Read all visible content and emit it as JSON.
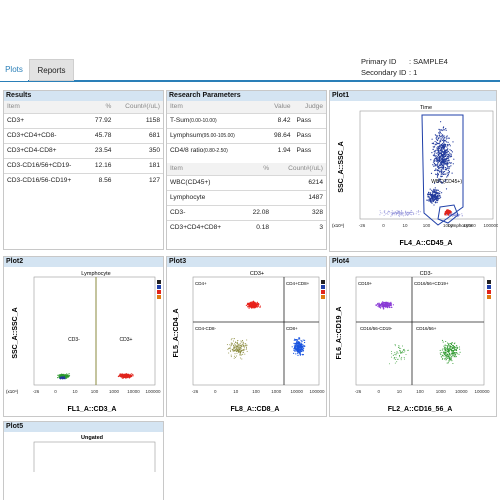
{
  "tabs": [
    {
      "label": "Plots"
    },
    {
      "label": "Reports"
    }
  ],
  "header": {
    "primary_id_label": "Primary ID",
    "primary_id_value": ": SAMPLE4",
    "secondary_id_label": "Secondary ID",
    "secondary_id_value": ": 1"
  },
  "results": {
    "title": "Results",
    "col_item": "Item",
    "col_pct": "%",
    "col_count": "Count#(/uL)",
    "rows": [
      {
        "item": "CD3+",
        "pct": "77.92",
        "count": "1158"
      },
      {
        "item": "CD3+CD4+CD8-",
        "pct": "45.78",
        "count": "681"
      },
      {
        "item": "CD3+CD4-CD8+",
        "pct": "23.54",
        "count": "350"
      },
      {
        "item": "CD3-CD16/56+CD19-",
        "pct": "12.16",
        "count": "181"
      },
      {
        "item": "CD3-CD16/56-CD19+",
        "pct": "8.56",
        "count": "127"
      }
    ]
  },
  "research": {
    "title": "Research Parameters",
    "col_item": "Item",
    "col_value": "Value",
    "col_judge": "Judge",
    "rows": [
      {
        "item": "T-Sum",
        "range": "(0.00-10.00)",
        "value": "8.42",
        "judge": "Pass"
      },
      {
        "item": "Lymphsum",
        "range": "(95.00-105.00)",
        "value": "98.64",
        "judge": "Pass"
      },
      {
        "item": "CD4/8 ratio",
        "range": "(0.80-2.50)",
        "value": "1.94",
        "judge": "Pass"
      }
    ],
    "col2_item": "Item",
    "col2_pct": "%",
    "col2_count": "Count#(/uL)",
    "rows2": [
      {
        "item": "WBC(CD45+)",
        "pct": "",
        "count": "6214"
      },
      {
        "item": "Lymphocyte",
        "pct": "",
        "count": "1487"
      },
      {
        "item": "CD3-",
        "pct": "22.08",
        "count": "328"
      },
      {
        "item": "CD3+CD4+CD8+",
        "pct": "0.18",
        "count": "3"
      }
    ]
  },
  "plot1": {
    "title": "Plot1",
    "subtitle": "Time",
    "xlabel": "FL4_A::CD45_A",
    "ylabel": "SSC_A::SSC_A",
    "gate_wbc": "WBC(CD45+)",
    "gate_lym": "Lymphocyte",
    "ticks_x": [
      "-26",
      "0",
      "10",
      "100",
      "1000",
      "10000",
      "100000"
    ],
    "ymark": "(x10⁴)"
  },
  "plot2": {
    "title": "Plot2",
    "subtitle": "Lymphocyte",
    "xlabel": "FL1_A::CD3_A",
    "ylabel": "SSC_A::SSC_A",
    "gate_neg": "CD3-",
    "gate_pos": "CD3+",
    "ticks_x": [
      "-26",
      "0",
      "10",
      "100",
      "1000",
      "10000",
      "100000"
    ],
    "ymark": "(x10⁴)"
  },
  "plot3": {
    "title": "Plot3",
    "subtitle": "CD3+",
    "xlabel": "FL8_A::CD8_A",
    "ylabel": "FL5_A::CD4_A",
    "q_tl": "CD4+",
    "q_tr": "CD4+CD8+",
    "q_bl": "CD4-CD8-",
    "q_br": "CD8+",
    "ticks_x": [
      "-26",
      "0",
      "10",
      "100",
      "1000",
      "10000",
      "100000"
    ]
  },
  "plot4": {
    "title": "Plot4",
    "subtitle": "CD3-",
    "xlabel": "FL2_A::CD16_56_A",
    "ylabel": "FL6_A::CD19_A",
    "q_tl": "CD19+",
    "q_tr": "CD16/56+CD19+",
    "q_bl": "CD16/56-CD19-",
    "q_br": "CD16/56+",
    "ticks_x": [
      "-26",
      "0",
      "10",
      "100",
      "1000",
      "10000",
      "100000"
    ]
  },
  "plot5": {
    "title": "Plot5",
    "subtitle": "Ungated"
  },
  "colors": {
    "accent": "#2a7fb8",
    "panel_header": "#d4e4f2",
    "gate_blue": "#1f3fa8",
    "gate_black": "#222222",
    "cd4_red": "#e8211b",
    "cd8_blue": "#1a55e0",
    "dn_olive": "#8a8a3c",
    "cd19_purple": "#8a3bd6",
    "nk_green": "#2e9a2e",
    "wbc_navy": "#223a9c",
    "lym_red": "#e0241c",
    "mono_lilac": "#9a9adc"
  }
}
